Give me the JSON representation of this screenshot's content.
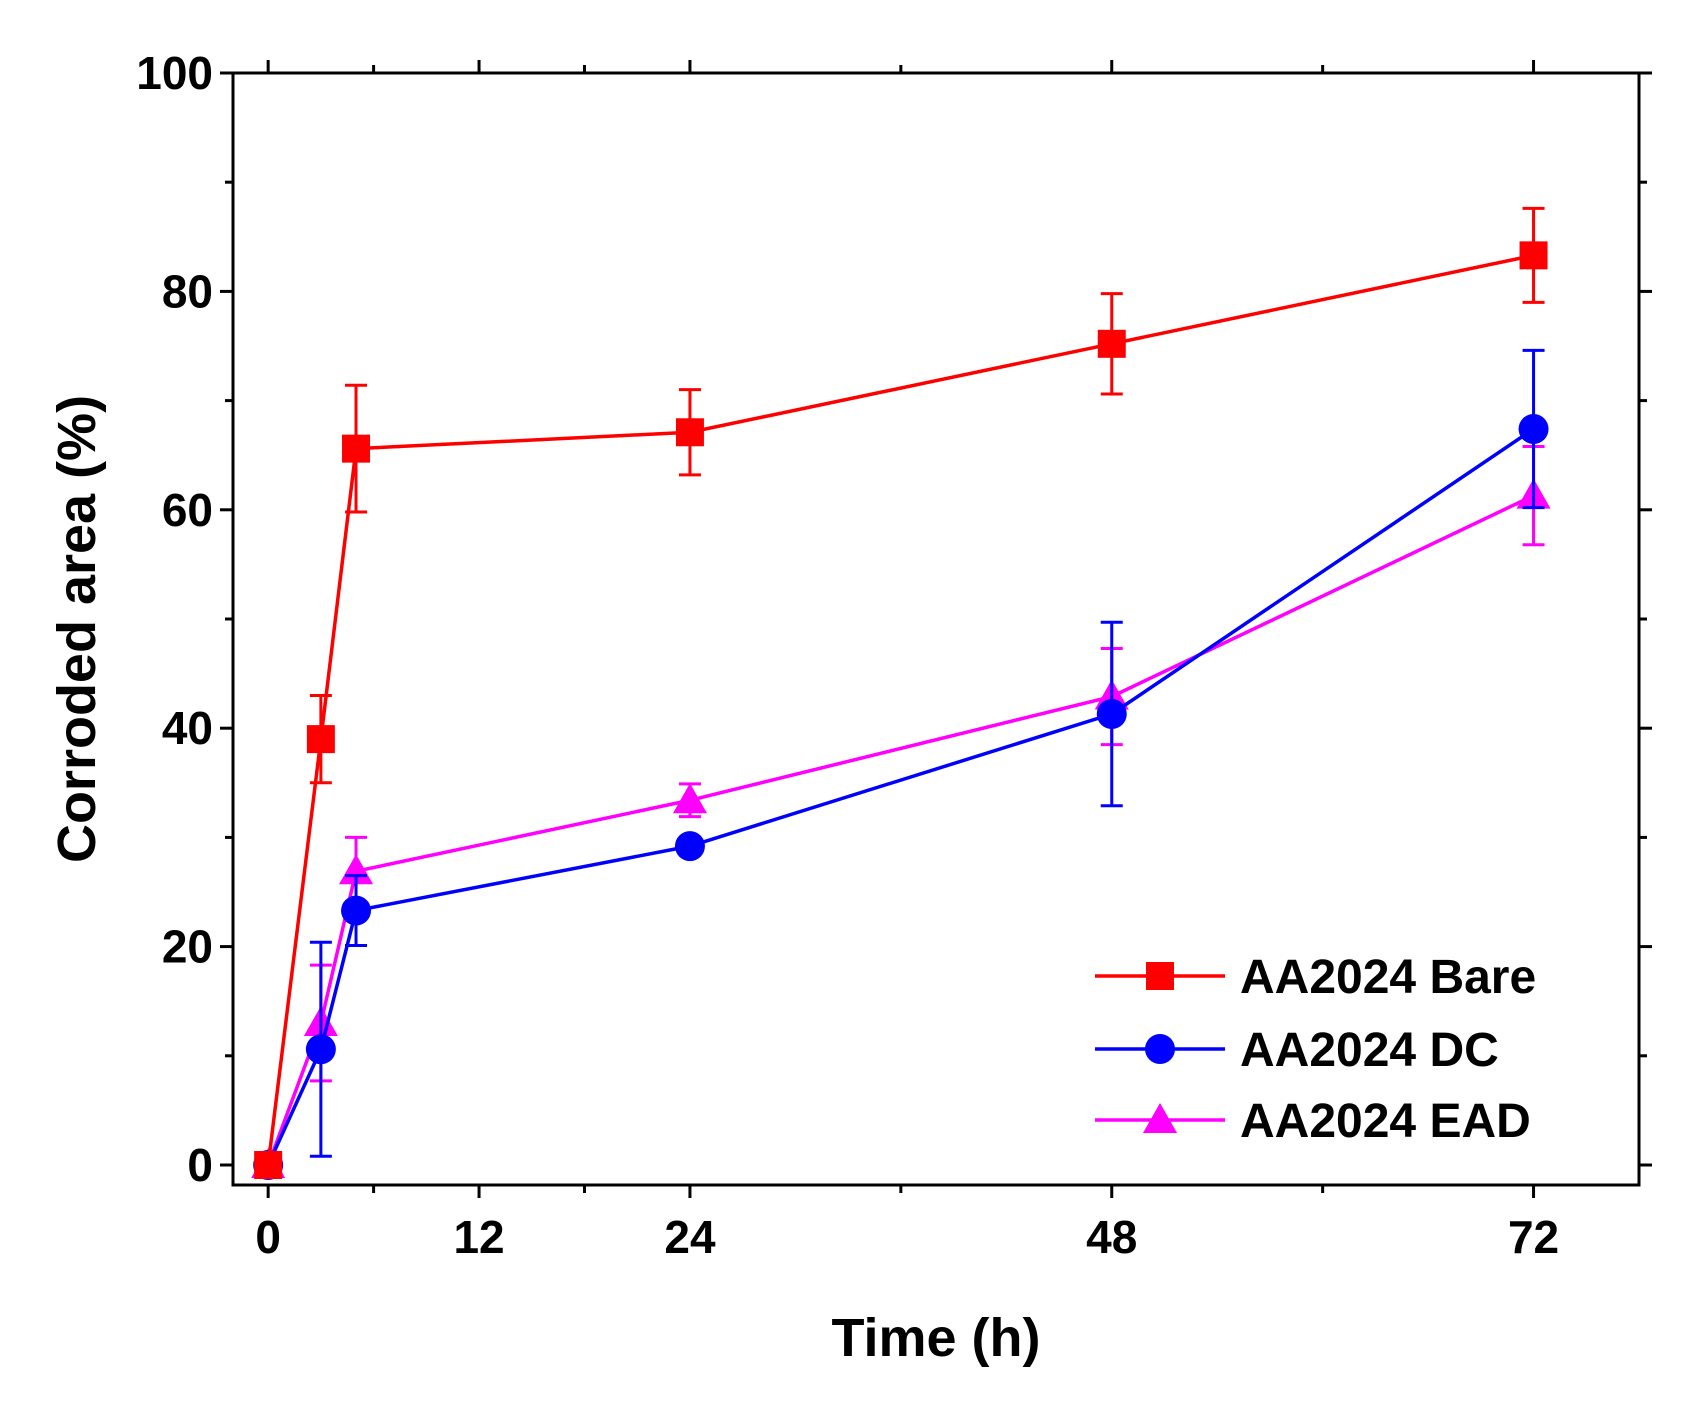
{
  "chart_data": {
    "type": "line",
    "title": "",
    "xlabel": "Time (h)",
    "ylabel": "Corroded area (%)",
    "xlim": [
      -2,
      78
    ],
    "ylim": [
      0,
      100
    ],
    "xticks": [
      0,
      12,
      24,
      48,
      72
    ],
    "yticks": [
      0,
      20,
      40,
      60,
      80,
      100
    ],
    "legend_position": "bottom-right",
    "series": [
      {
        "name": "AA2024 Bare",
        "color": "#ff0000",
        "marker": "square",
        "x": [
          0,
          3,
          5,
          24,
          48,
          72
        ],
        "y": [
          0,
          39,
          65.6,
          67.1,
          75.2,
          83.3
        ],
        "err": [
          0,
          4,
          5.8,
          3.9,
          4.6,
          4.3
        ]
      },
      {
        "name": "AA2024 DC",
        "color": "#0000ff",
        "marker": "circle",
        "x": [
          0,
          3,
          5,
          24,
          48,
          72
        ],
        "y": [
          0,
          10.6,
          23.3,
          29.2,
          41.3,
          67.4
        ],
        "err": [
          0,
          9.8,
          3.2,
          0.8,
          8.4,
          7.2
        ]
      },
      {
        "name": "AA2024 EAD",
        "color": "#ff00ff",
        "marker": "triangle",
        "x": [
          0,
          3,
          5,
          24,
          48,
          72
        ],
        "y": [
          0,
          13,
          26.9,
          33.4,
          42.9,
          61.3
        ],
        "err": [
          0,
          5.3,
          3.1,
          1.5,
          4.4,
          4.5
        ]
      }
    ]
  }
}
